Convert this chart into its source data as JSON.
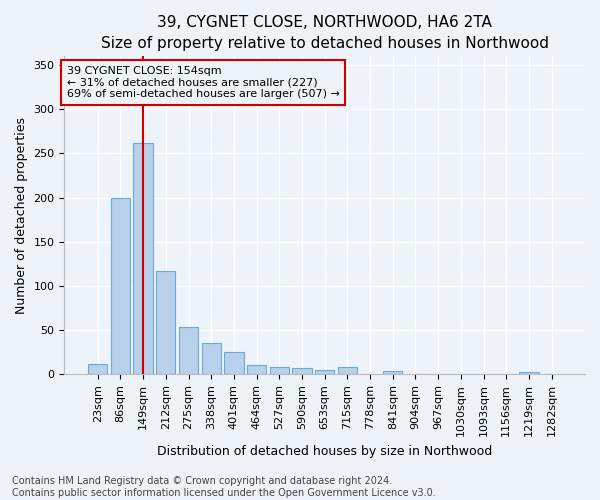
{
  "title1": "39, CYGNET CLOSE, NORTHWOOD, HA6 2TA",
  "title2": "Size of property relative to detached houses in Northwood",
  "xlabel": "Distribution of detached houses by size in Northwood",
  "ylabel": "Number of detached properties",
  "categories": [
    "23sqm",
    "86sqm",
    "149sqm",
    "212sqm",
    "275sqm",
    "338sqm",
    "401sqm",
    "464sqm",
    "527sqm",
    "590sqm",
    "653sqm",
    "715sqm",
    "778sqm",
    "841sqm",
    "904sqm",
    "967sqm",
    "1030sqm",
    "1093sqm",
    "1156sqm",
    "1219sqm",
    "1282sqm"
  ],
  "values": [
    12,
    200,
    262,
    117,
    54,
    35,
    25,
    10,
    8,
    7,
    5,
    8,
    0,
    4,
    0,
    0,
    0,
    0,
    0,
    3,
    0
  ],
  "bar_color": "#b8d0ea",
  "bar_edgecolor": "#6aaad4",
  "vline_x_index": 2,
  "vline_color": "#cc0000",
  "annotation_text": "39 CYGNET CLOSE: 154sqm\n← 31% of detached houses are smaller (227)\n69% of semi-detached houses are larger (507) →",
  "annotation_box_edgecolor": "#cc0000",
  "ylim": [
    0,
    360
  ],
  "yticks": [
    0,
    50,
    100,
    150,
    200,
    250,
    300,
    350
  ],
  "footer1": "Contains HM Land Registry data © Crown copyright and database right 2024.",
  "footer2": "Contains public sector information licensed under the Open Government Licence v3.0.",
  "background_color": "#eef2f9",
  "grid_color": "#ffffff",
  "title1_fontsize": 11,
  "title2_fontsize": 10,
  "xlabel_fontsize": 9,
  "ylabel_fontsize": 9,
  "tick_fontsize": 8,
  "footer_fontsize": 7,
  "annot_fontsize": 8
}
